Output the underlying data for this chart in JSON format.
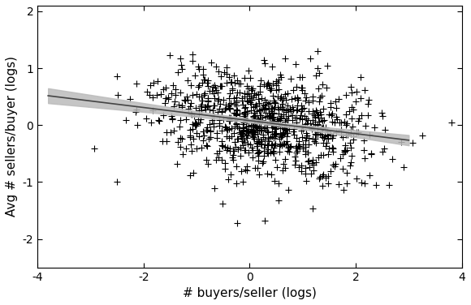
{
  "xlabel": "# buyers/seller (logs)",
  "ylabel": "Avg # sellers/buyer (logs)",
  "xlim": [
    -4,
    4
  ],
  "ylim": [
    -2.5,
    2.2
  ],
  "xticks": [
    -4,
    -2,
    0,
    2,
    4
  ],
  "yticks": [
    -2,
    -1,
    0,
    1,
    2
  ],
  "xtick_labels": [
    "-4",
    "-2",
    "0",
    "2",
    "4"
  ],
  "ytick_labels": [
    "-2",
    "-1",
    "0",
    "1",
    "2"
  ],
  "marker_color": "black",
  "marker_size": 6,
  "marker_linewidth": 0.8,
  "regression_slope": -0.115,
  "regression_intercept": 0.08,
  "ci_color": "#bbbbbb",
  "ci_alpha": 0.85,
  "line_color": "#444444",
  "line_width": 1.2,
  "seed": 123,
  "n_points": 900,
  "scatter_x_mean": 0.3,
  "scatter_x_std": 1.0,
  "scatter_y_residual_std": 0.48,
  "background_color": "#ffffff",
  "figsize": [
    5.8,
    3.76
  ],
  "dpi": 100
}
